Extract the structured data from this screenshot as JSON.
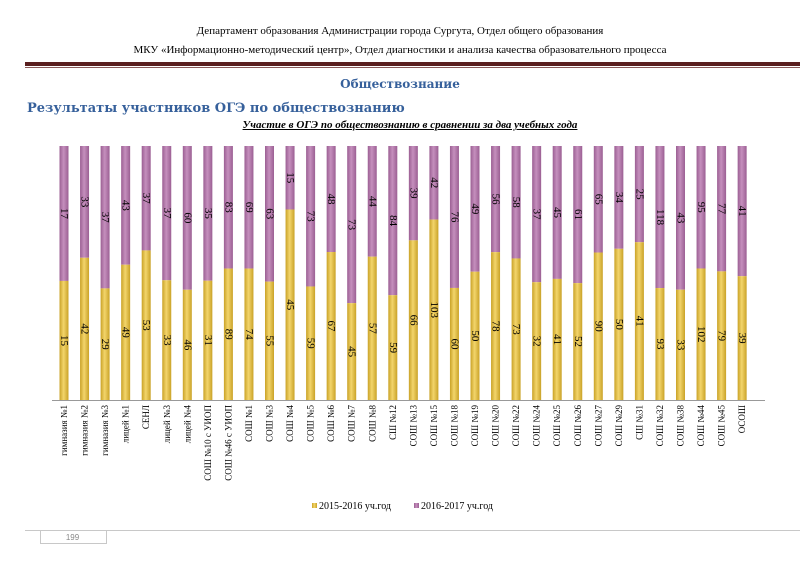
{
  "header": {
    "line1": "Департамент образования Администрации города Сургута, Отдел общего образования",
    "line2": "МКУ «Информационно-методический центр», Отдел диагностики и анализа качества образовательного процесса"
  },
  "section_title": "Обществознание",
  "results_heading": "Результаты участников ОГЭ по обществознанию",
  "page_number": "199",
  "chart_data": {
    "type": "bar",
    "stacked": "percent",
    "title": "Участие в ОГЭ по обществознанию в сравнении за два учебных года",
    "categories": [
      "гимназия №1",
      "гимназия №2",
      "гимназия №3",
      "лицей №1",
      "СЕНЛ",
      "лицей №3",
      "лицей №4",
      "СОШ №10 с УИОП",
      "СОШ №46 с УИОП",
      "СОШ №1",
      "СОШ №3",
      "СОШ №4",
      "СОШ №5",
      "СОШ №6",
      "СОШ №7",
      "СОШ №8",
      "СШ №12",
      "СОШ №13",
      "СОШ №15",
      "СОШ №18",
      "СОШ №19",
      "СОШ №20",
      "СОШ №22",
      "СОШ №24",
      "СОШ №25",
      "СОШ №26",
      "СОШ №27",
      "СОШ №29",
      "СШ №31",
      "СОШ №32",
      "СОШ №38",
      "СОШ №44",
      "СОШ №45",
      "ОСОШ"
    ],
    "series": [
      {
        "name": "2015-2016 уч.год",
        "color": "#f3d56b",
        "color_dark": "#c9a227",
        "values": [
          15,
          42,
          29,
          49,
          53,
          33,
          46,
          31,
          89,
          74,
          55,
          45,
          59,
          67,
          45,
          57,
          59,
          66,
          103,
          60,
          50,
          78,
          73,
          32,
          41,
          52,
          90,
          50,
          41,
          93,
          33,
          102,
          79,
          39
        ]
      },
      {
        "name": "2016-2017 уч.год",
        "color": "#c58fbd",
        "color_dark": "#9b5f93",
        "values": [
          17,
          33,
          37,
          43,
          37,
          37,
          60,
          35,
          83,
          69,
          63,
          15,
          73,
          48,
          73,
          44,
          84,
          39,
          42,
          76,
          49,
          56,
          58,
          37,
          45,
          61,
          65,
          34,
          25,
          118,
          43,
          95,
          77,
          41
        ]
      }
    ],
    "legend_position": "bottom",
    "xlabel": "",
    "ylabel": "",
    "grid": false
  }
}
